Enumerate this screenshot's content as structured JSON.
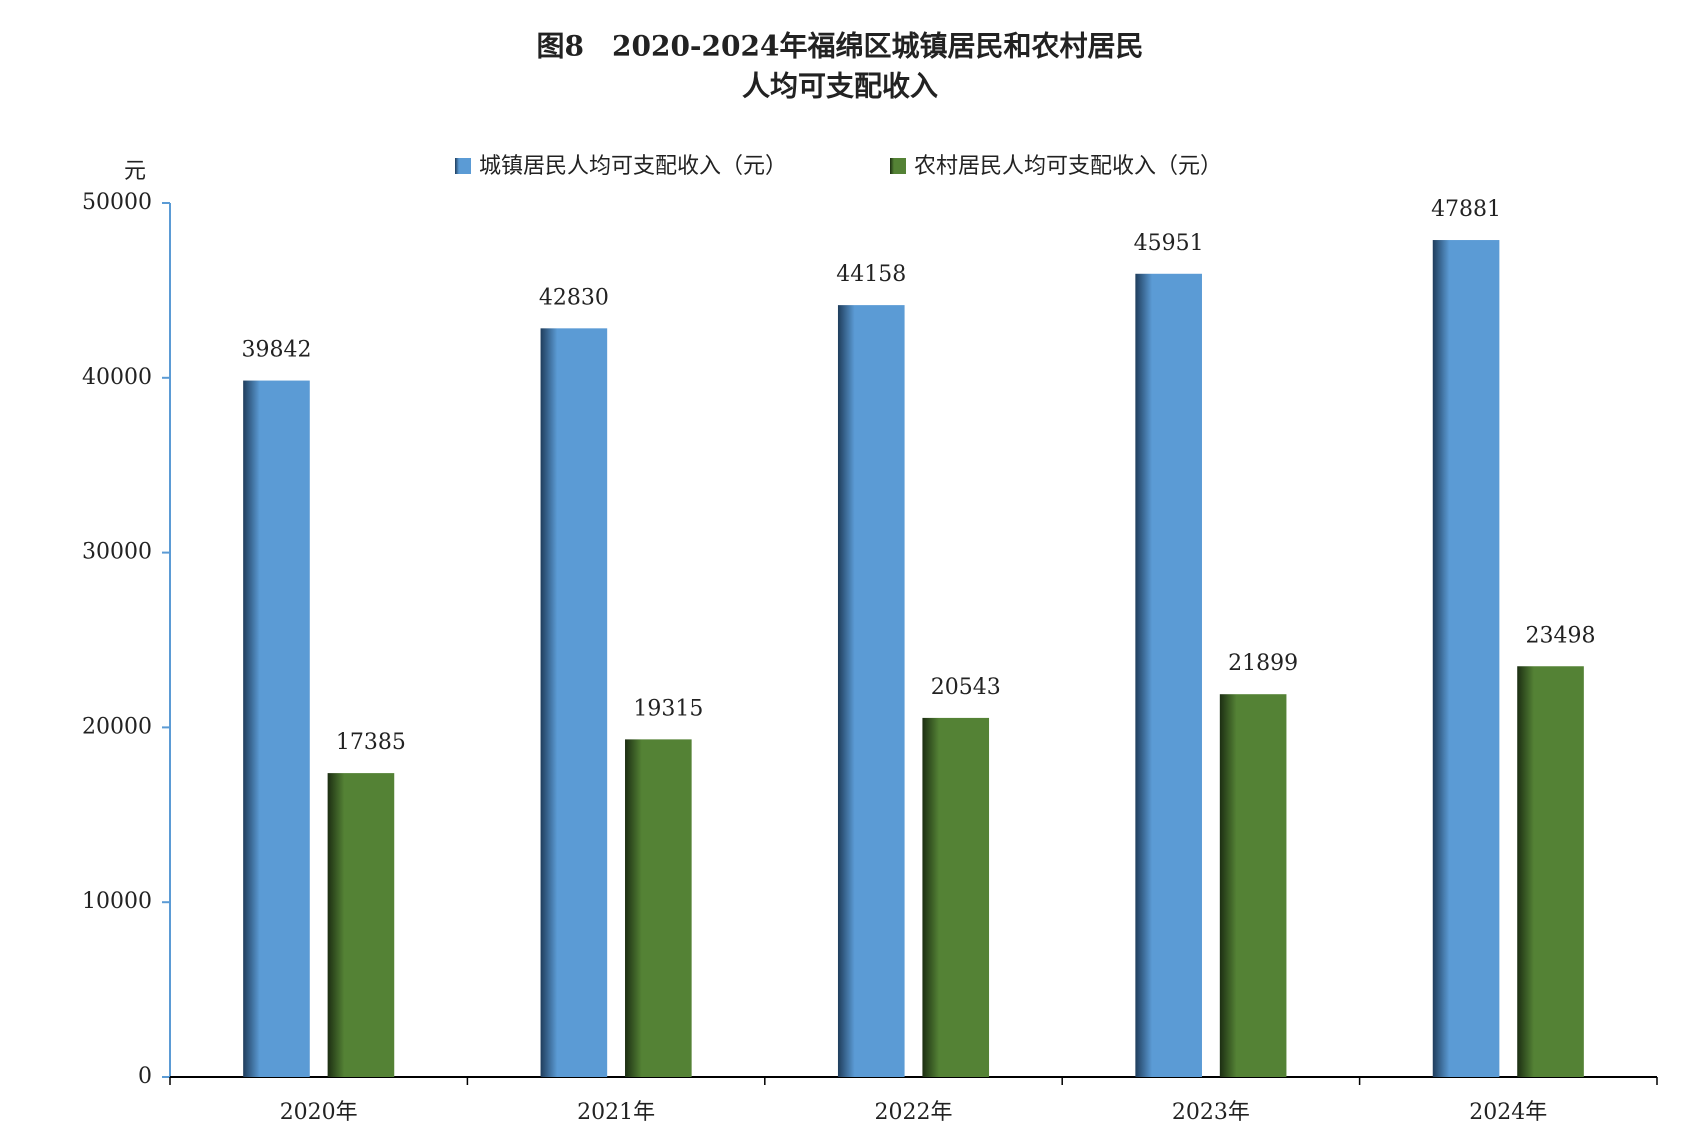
{
  "chart_data": {
    "type": "bar",
    "title": [
      "图8　2020-2024年福绵区城镇居民和农村居民",
      "人均可支配收入"
    ],
    "y_axis_label": "元",
    "categories": [
      "2020年",
      "2021年",
      "2022年",
      "2023年",
      "2024年"
    ],
    "series": [
      {
        "name": "城镇居民人均可支配收入（元）",
        "color": "#5b9bd5",
        "values": [
          39842,
          42830,
          44158,
          45951,
          47881
        ]
      },
      {
        "name": "农村居民人均可支配收入（元）",
        "color": "#548235",
        "values": [
          17385,
          19315,
          20543,
          21899,
          23498
        ]
      }
    ],
    "ylim": [
      0,
      50000
    ],
    "yticks": [
      0,
      10000,
      20000,
      30000,
      40000,
      50000
    ],
    "grid": false
  }
}
